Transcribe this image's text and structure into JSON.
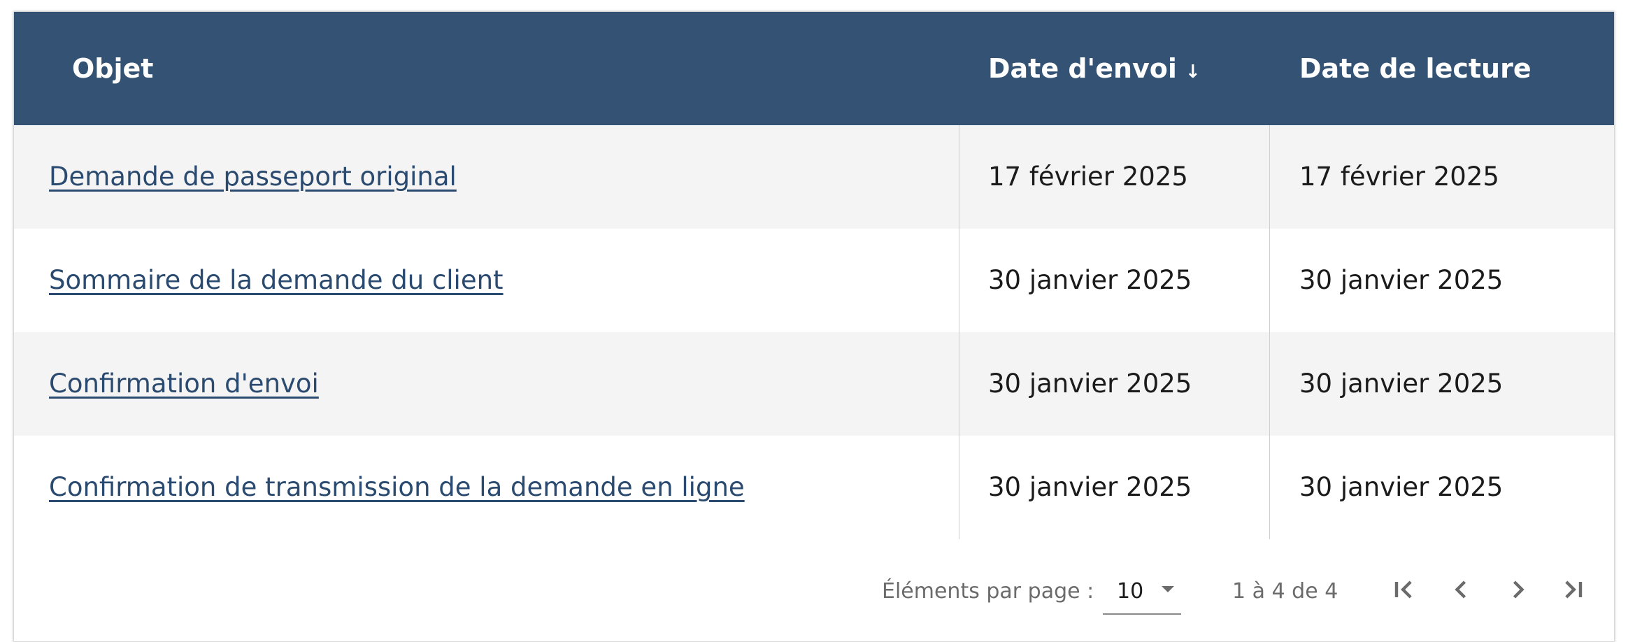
{
  "table": {
    "columns": [
      {
        "label": "Objet"
      },
      {
        "label": "Date d'envoi",
        "sort": "descending",
        "sort_icon": "arrow-down-icon"
      },
      {
        "label": "Date de lecture"
      }
    ],
    "rows": [
      {
        "objet": "Demande de passeport original",
        "envoi": "17 février 2025",
        "lecture": "17 février 2025"
      },
      {
        "objet": "Sommaire de la demande du client",
        "envoi": "30 janvier 2025",
        "lecture": "30 janvier 2025"
      },
      {
        "objet": "Confirmation d'envoi",
        "envoi": "30 janvier 2025",
        "lecture": "30 janvier 2025"
      },
      {
        "objet": "Confirmation de transmission de la demande en ligne",
        "envoi": "30 janvier 2025",
        "lecture": "30 janvier 2025"
      }
    ]
  },
  "paginator": {
    "items_per_page_label": "Éléments par page :",
    "items_per_page_value": "10",
    "range_label": "1 à 4 de 4",
    "buttons": [
      "first-page-icon",
      "previous-page-icon",
      "next-page-icon",
      "last-page-icon"
    ]
  },
  "colors": {
    "header_bg": "#345273",
    "link": "#2b4a6f",
    "row_alt": "#f4f4f4"
  }
}
